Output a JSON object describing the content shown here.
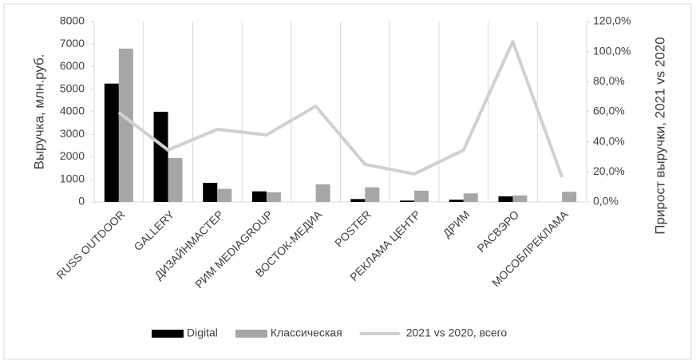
{
  "chart_data": {
    "type": "bar-line",
    "categories": [
      "RUSS OUTDOOR",
      "GALLERY",
      "ДИЗАЙНМАСТЕР",
      "РИМ MEDIAGROUP",
      "ВОСТОК-МЕДИА",
      "POSTER",
      "РЕКЛАМА ЦЕНТР",
      "ДРИМ",
      "РАСВЭРО",
      "МОСОБЛРЕКЛАМА"
    ],
    "y_label": "Выручка, млн.руб.",
    "y2_label": "Прирост  выручки, 2021 vs 2020",
    "ylim": [
      0,
      8000
    ],
    "yticks": [
      0,
      1000,
      2000,
      3000,
      4000,
      5000,
      6000,
      7000,
      8000
    ],
    "y2lim": [
      0,
      120
    ],
    "y2ticks": [
      {
        "value": 0,
        "label": "0,0%"
      },
      {
        "value": 20,
        "label": "20,0%"
      },
      {
        "value": 40,
        "label": "40,0%"
      },
      {
        "value": 60,
        "label": "60,0%"
      },
      {
        "value": 80,
        "label": "80,0%"
      },
      {
        "value": 100,
        "label": "100,0%"
      },
      {
        "value": 120,
        "label": "120,0%"
      }
    ],
    "legend": "bottom",
    "series": [
      {
        "name": "Digital",
        "type": "bar",
        "color": "#000000",
        "values": [
          5250,
          4000,
          850,
          470,
          null,
          130,
          60,
          100,
          250,
          null
        ]
      },
      {
        "name": "Классическая",
        "type": "bar",
        "color": "#a6a6a6",
        "values": [
          6800,
          1950,
          580,
          430,
          780,
          650,
          500,
          380,
          290,
          450
        ]
      },
      {
        "name": "2021 vs 2020, всего",
        "type": "line",
        "axis": "y2",
        "color": "#d0d0d0",
        "values": [
          59.5,
          34.5,
          48.3,
          44.6,
          63.7,
          25,
          18.6,
          34.5,
          106.7,
          16.5
        ]
      }
    ]
  }
}
